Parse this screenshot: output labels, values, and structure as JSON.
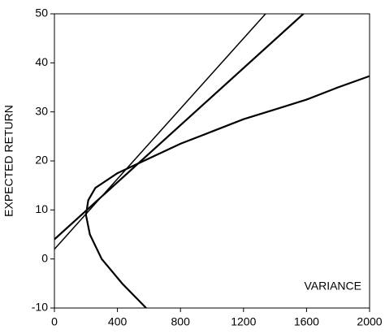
{
  "chart_data": {
    "type": "line",
    "y_label": "EXPECTED RETURN",
    "annotation": "VARIANCE",
    "xlim": [
      0,
      2000
    ],
    "xticks": [
      0,
      400,
      800,
      1200,
      1600,
      2000
    ],
    "ylim": [
      -10,
      50
    ],
    "yticks": [
      -10,
      0,
      10,
      20,
      30,
      40,
      50
    ],
    "series": [
      {
        "color": "#000000",
        "x": [
          582,
          430,
          300,
          225,
          200,
          215,
          260,
          400,
          600,
          800,
          1000,
          1200,
          1400,
          1600,
          1800,
          2000
        ],
        "values": [
          -10,
          -5,
          0,
          5,
          9,
          12,
          14.5,
          17.5,
          20.5,
          23.5,
          26,
          28.5,
          30.5,
          32.5,
          35,
          37.3
        ]
      },
      {
        "color": "#000000",
        "x": [
          0,
          1340
        ],
        "values": [
          2,
          50
        ]
      },
      {
        "color": "#000000",
        "x": [
          0,
          1580
        ],
        "values": [
          4,
          50
        ]
      }
    ]
  }
}
